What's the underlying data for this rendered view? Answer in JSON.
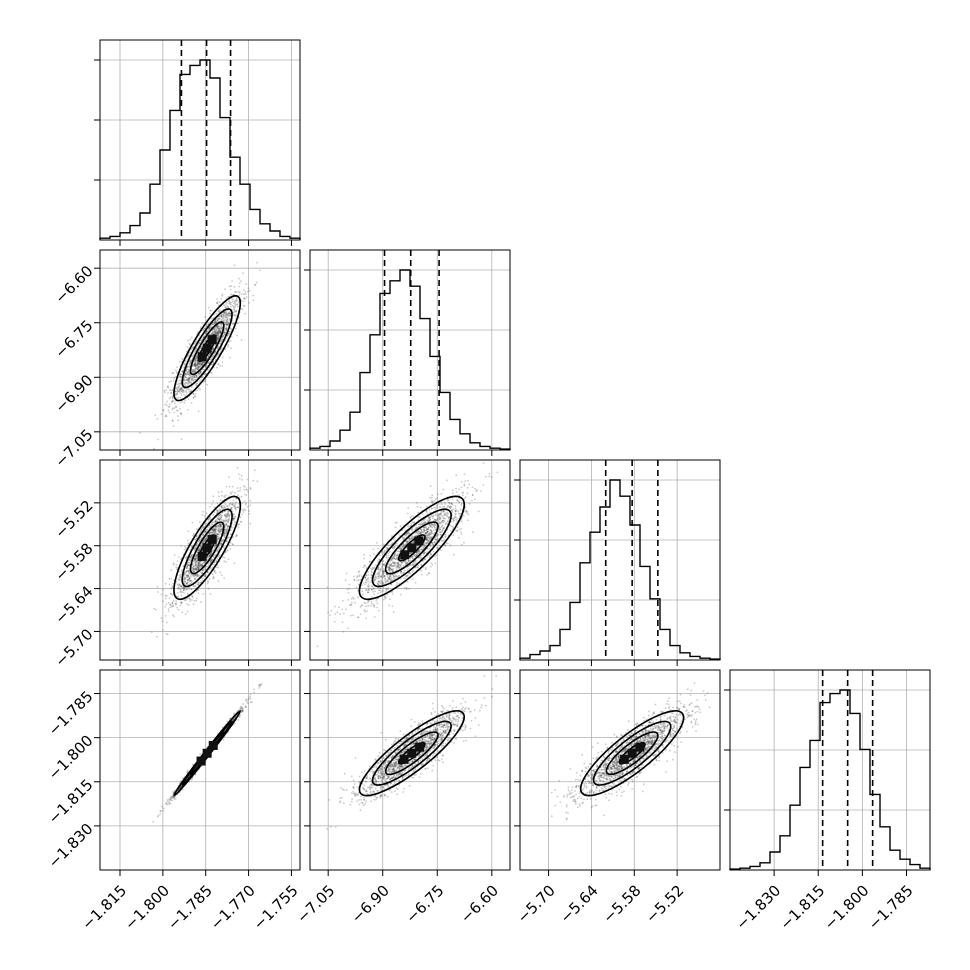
{
  "chart_data": {
    "type": "corner",
    "parameters": [
      {
        "range": [
          -1.822,
          -1.752
        ],
        "ticks": [
          -1.815,
          -1.8,
          -1.785,
          -1.77,
          -1.755
        ],
        "tick_labels": [
          "−1.815",
          "−1.800",
          "−1.785",
          "−1.770",
          "−1.755"
        ],
        "quantiles": [
          -1.7935,
          -1.7847,
          -1.7763
        ],
        "mean": -1.7845,
        "sd": 0.0058
      },
      {
        "range": [
          -7.1,
          -6.55
        ],
        "ticks": [
          -7.05,
          -6.9,
          -6.75,
          -6.6
        ],
        "tick_labels": [
          "−7.05",
          "−6.90",
          "−6.75",
          "−6.60"
        ],
        "quantiles": [
          -6.895,
          -6.823,
          -6.745
        ],
        "mean": -6.82,
        "sd": 0.072
      },
      {
        "range": [
          -5.74,
          -5.46
        ],
        "ticks": [
          -5.7,
          -5.64,
          -5.58,
          -5.52
        ],
        "tick_labels": [
          "−5.70",
          "−5.64",
          "−5.58",
          "−5.52"
        ],
        "quantiles": [
          -5.62,
          -5.583,
          -5.547
        ],
        "mean": -5.583,
        "sd": 0.036
      },
      {
        "range": [
          -1.845,
          -1.777
        ],
        "ticks": [
          -1.83,
          -1.815,
          -1.8,
          -1.785
        ],
        "tick_labels": [
          "−1.830",
          "−1.815",
          "−1.800",
          "−1.785"
        ],
        "quantiles": [
          -1.8135,
          -1.805,
          -1.7965
        ],
        "mean": -1.8053,
        "sd": 0.0072
      }
    ],
    "histograms": [
      [
        0.01,
        0.02,
        0.04,
        0.08,
        0.15,
        0.31,
        0.5,
        0.72,
        0.92,
        0.97,
        1.0,
        0.9,
        0.68,
        0.46,
        0.31,
        0.17,
        0.09,
        0.05,
        0.02,
        0.01
      ],
      [
        0.01,
        0.02,
        0.05,
        0.11,
        0.21,
        0.43,
        0.64,
        0.87,
        0.94,
        1.0,
        0.91,
        0.73,
        0.52,
        0.32,
        0.17,
        0.09,
        0.04,
        0.02,
        0.01,
        0.005
      ],
      [
        0.01,
        0.03,
        0.05,
        0.08,
        0.17,
        0.32,
        0.54,
        0.71,
        0.85,
        1.0,
        0.91,
        0.75,
        0.52,
        0.34,
        0.17,
        0.08,
        0.04,
        0.02,
        0.01,
        0.005
      ],
      [
        0.005,
        0.01,
        0.02,
        0.04,
        0.1,
        0.19,
        0.36,
        0.57,
        0.72,
        0.93,
        0.98,
        1.0,
        0.87,
        0.67,
        0.42,
        0.24,
        0.11,
        0.06,
        0.03,
        0.01
      ]
    ],
    "correlations": [
      {
        "row": 1,
        "col": 0,
        "rho": 0.86
      },
      {
        "row": 2,
        "col": 0,
        "rho": 0.82
      },
      {
        "row": 2,
        "col": 1,
        "rho": 0.84
      },
      {
        "row": 3,
        "col": 0,
        "rho": 0.995
      },
      {
        "row": 3,
        "col": 1,
        "rho": 0.86
      },
      {
        "row": 3,
        "col": 2,
        "rho": 0.84
      }
    ],
    "contour_levels": [
      0.5,
      1.0,
      1.5,
      2.0
    ],
    "colors": {
      "points": "#444444",
      "contour_line": "#000000",
      "fill_light": "#e0e0e0",
      "fill_mid": "#b0b0b0",
      "fill_dark": "#707070",
      "peak": "#111111",
      "grid": "#b0b0b0"
    }
  }
}
